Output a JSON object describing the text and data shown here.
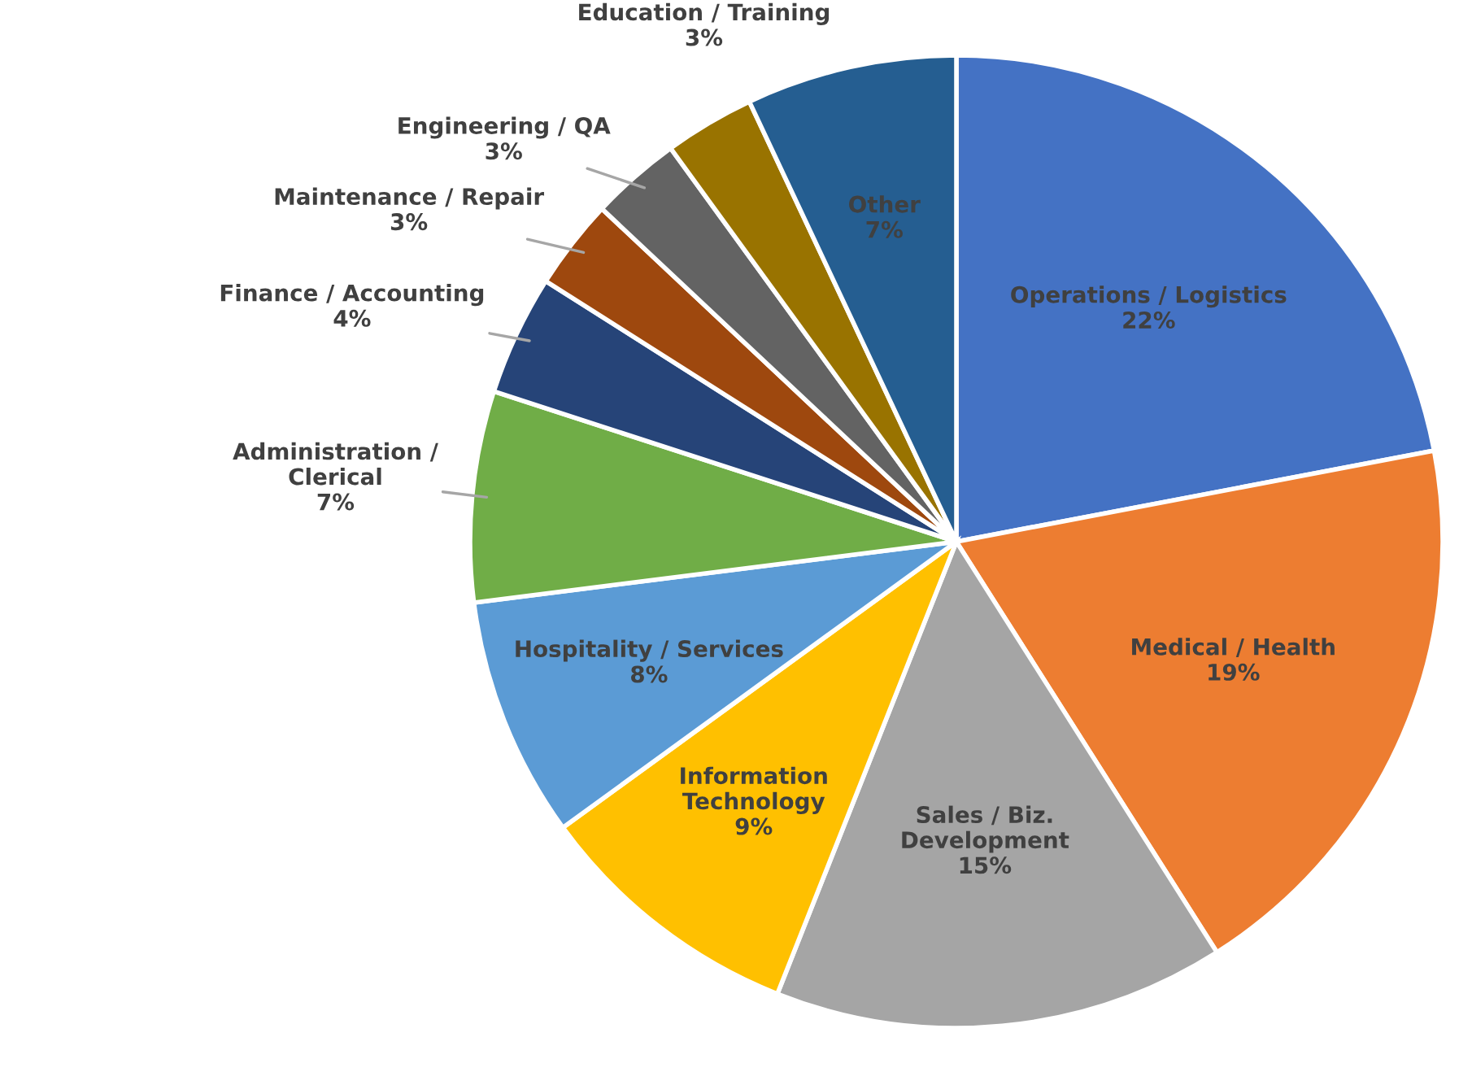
{
  "chart_data": {
    "type": "pie",
    "categories": [
      "Operations / Logistics",
      "Medical / Health",
      "Sales / Biz.\nDevelopment",
      "Information\nTechnology",
      "Hospitality / Services",
      "Administration /\nClerical",
      "Finance / Accounting",
      "Maintenance / Repair",
      "Engineering / QA",
      "Education / Training",
      "Other"
    ],
    "values": [
      22,
      19,
      15,
      9,
      8,
      7,
      4,
      3,
      3,
      3,
      7
    ],
    "value_labels": [
      "22%",
      "19%",
      "15%",
      "9%",
      "8%",
      "7%",
      "4%",
      "3%",
      "3%",
      "3%",
      "7%"
    ],
    "colors": [
      "#4472c4",
      "#ed7d31",
      "#a5a5a5",
      "#ffc000",
      "#5b9bd5",
      "#70ad47",
      "#264478",
      "#9e480e",
      "#636363",
      "#997300",
      "#255e91"
    ],
    "legend": false
  }
}
